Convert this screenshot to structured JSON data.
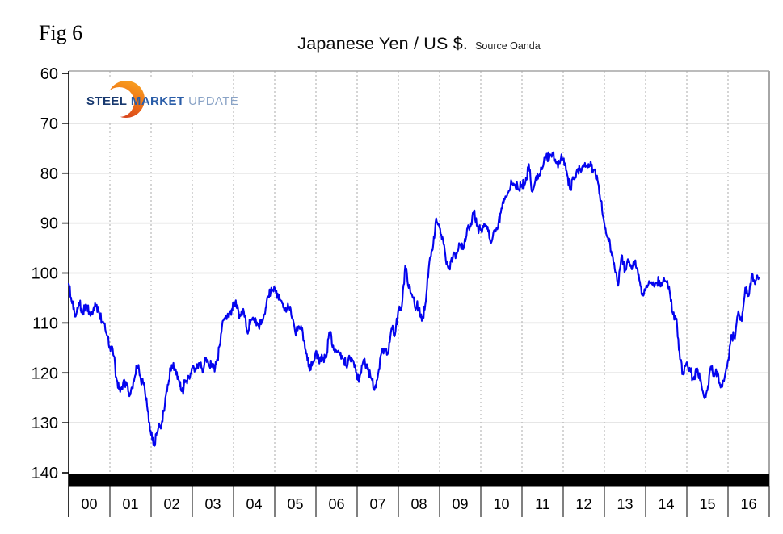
{
  "fig_label": "Fig 6",
  "title": {
    "main": "Japanese Yen / US $.",
    "source": "Source Oanda"
  },
  "logo": {
    "word1": "STEEL",
    "word2": "MARKET",
    "word3": "UPDATE"
  },
  "colors": {
    "line": "#0404ee",
    "grid_horizontal": "#d8d8d8",
    "grid_vertical_dashed": "#ababab",
    "plot_border": "#a6a6a6",
    "axis": "#000000",
    "bottom_band": "#000000",
    "logo_navy": "#17386e",
    "logo_blue": "#2a5da8",
    "logo_light_blue": "#8aa3c6",
    "crescent_orange": "#f7941e",
    "crescent_red": "#d23a20"
  },
  "chart_data": {
    "type": "line",
    "title": "Japanese Yen / US $.",
    "subtitle": "Source Oanda",
    "legend": false,
    "grid": "both",
    "y_axis": {
      "min": 60,
      "max": 140,
      "inverted": true,
      "ticks": [
        60,
        70,
        80,
        90,
        100,
        110,
        120,
        130,
        140
      ]
    },
    "x_axis": {
      "labels": [
        "00",
        "01",
        "02",
        "03",
        "04",
        "05",
        "06",
        "07",
        "08",
        "09",
        "10",
        "11",
        "12",
        "13",
        "14",
        "15",
        "16"
      ],
      "start_year": 2000,
      "end_year": 2017
    },
    "series": [
      {
        "name": "JPY per USD",
        "start": "2000-01",
        "interval": "monthly",
        "values": [
          101.8,
          105.8,
          108.9,
          105.6,
          108.4,
          106.2,
          107.9,
          108.2,
          106.6,
          108.3,
          109.9,
          112.1,
          115.0,
          116.1,
          121.4,
          123.8,
          121.6,
          122.4,
          124.6,
          121.4,
          118.6,
          121.4,
          122.4,
          127.6,
          132.2,
          134.6,
          131.2,
          130.7,
          126.2,
          122.4,
          118.1,
          119.2,
          121.2,
          124.0,
          121.6,
          120.9,
          118.8,
          119.4,
          118.3,
          119.8,
          117.2,
          118.4,
          118.8,
          118.4,
          114.2,
          109.6,
          109.1,
          107.6,
          106.3,
          106.7,
          108.8,
          107.6,
          112.1,
          109.5,
          109.4,
          110.3,
          110.1,
          108.6,
          104.6,
          103.1,
          102.9,
          104.8,
          105.4,
          107.3,
          106.8,
          108.8,
          112.1,
          110.6,
          111.3,
          115.1,
          119.1,
          118.1,
          115.8,
          117.9,
          117.2,
          117.1,
          111.6,
          114.8,
          115.7,
          116.1,
          117.3,
          118.8,
          117.1,
          117.9,
          120.9,
          120.4,
          117.1,
          119.1,
          121.1,
          123.3,
          121.1,
          116.3,
          114.9,
          116.1,
          110.9,
          112.6,
          107.6,
          107.1,
          98.6,
          102.9,
          104.6,
          107.3,
          106.6,
          109.6,
          105.6,
          97.6,
          95.6,
          88.9,
          90.6,
          93.6,
          98.1,
          99.0,
          96.4,
          96.1,
          94.4,
          95.1,
          91.1,
          90.6,
          87.6,
          90.6,
          91.4,
          89.9,
          90.9,
          93.9,
          91.1,
          90.6,
          87.1,
          85.1,
          84.1,
          81.6,
          82.6,
          83.1,
          82.4,
          82.1,
          78.1,
          83.9,
          80.9,
          80.4,
          78.6,
          76.9,
          76.8,
          75.9,
          77.8,
          77.7,
          76.9,
          79.4,
          83.1,
          81.1,
          79.4,
          79.4,
          78.4,
          78.6,
          77.9,
          79.4,
          81.4,
          85.4,
          90.1,
          93.1,
          95.6,
          99.4,
          102.6,
          96.6,
          99.6,
          97.6,
          99.1,
          97.6,
          100.4,
          104.4,
          103.6,
          101.9,
          102.4,
          102.3,
          101.6,
          102.1,
          101.7,
          103.4,
          108.4,
          109.4,
          117.4,
          120.4,
          117.9,
          119.4,
          121.1,
          119.3,
          121.4,
          125.1,
          123.4,
          118.6,
          120.4,
          120.1,
          122.9,
          121.1,
          117.6,
          112.6,
          113.2,
          107.6,
          109.7,
          103.1,
          104.9,
          100.4,
          101.9,
          100.9
        ]
      }
    ]
  }
}
